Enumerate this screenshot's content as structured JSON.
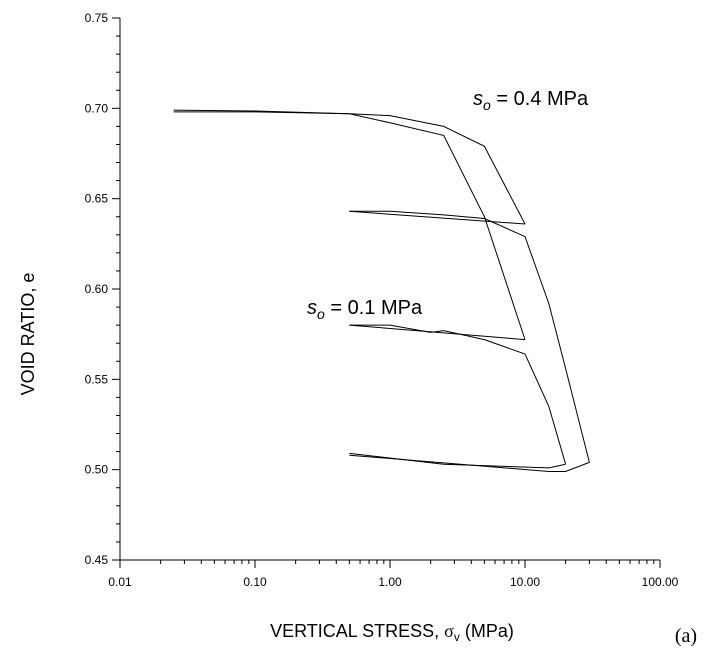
{
  "chart_data": {
    "type": "line",
    "xscale": "log",
    "xlim": [
      0.01,
      100
    ],
    "ylim": [
      0.45,
      0.75
    ],
    "x_tick_labels": [
      "0.01",
      "0.10",
      "1.00",
      "10.00",
      "100.00"
    ],
    "y_tick_labels": [
      "0.45",
      "0.50",
      "0.55",
      "0.60",
      "0.65",
      "0.70",
      "0.75"
    ],
    "xlabel_main": "VERTICAL STRESS, ",
    "xlabel_symbol": "σ",
    "xlabel_sub": "v",
    "xlabel_unit": " (MPa)",
    "ylabel": "VOID RATIO, e",
    "panel_label": "(a)",
    "grid": false,
    "annotations": [
      {
        "var": "s",
        "sub": "o",
        "text": " = 0.4 MPa"
      },
      {
        "var": "s",
        "sub": "o",
        "text": " = 0.1 MPa"
      }
    ],
    "series": [
      {
        "values": [
          [
            0.025,
            0.699
          ],
          [
            0.1,
            0.6985
          ],
          [
            0.5,
            0.697
          ],
          [
            1.0,
            0.696
          ],
          [
            2.5,
            0.69
          ],
          [
            5.0,
            0.679
          ],
          [
            10.0,
            0.636
          ]
        ]
      },
      {
        "values": [
          [
            10.0,
            0.636
          ],
          [
            0.5,
            0.643
          ]
        ]
      },
      {
        "values": [
          [
            0.025,
            0.698
          ],
          [
            0.1,
            0.698
          ],
          [
            0.5,
            0.697
          ],
          [
            1.0,
            0.692
          ],
          [
            2.5,
            0.685
          ],
          [
            5.0,
            0.64
          ],
          [
            10.0,
            0.572
          ]
        ]
      },
      {
        "values": [
          [
            10.0,
            0.572
          ],
          [
            0.5,
            0.58
          ]
        ]
      },
      {
        "values": [
          [
            0.5,
            0.643
          ],
          [
            1.0,
            0.643
          ],
          [
            2.5,
            0.641
          ],
          [
            5.0,
            0.639
          ],
          [
            10.0,
            0.629
          ],
          [
            15.0,
            0.592
          ],
          [
            20.0,
            0.556
          ],
          [
            30.0,
            0.504
          ]
        ]
      },
      {
        "values": [
          [
            30.0,
            0.504
          ],
          [
            20.0,
            0.499
          ],
          [
            15.0,
            0.499
          ],
          [
            0.5,
            0.508
          ]
        ]
      },
      {
        "values": [
          [
            0.5,
            0.58
          ],
          [
            1.0,
            0.58
          ],
          [
            2.0,
            0.576
          ],
          [
            2.5,
            0.577
          ],
          [
            5.0,
            0.572
          ],
          [
            10.0,
            0.564
          ],
          [
            15.0,
            0.535
          ],
          [
            20.0,
            0.503
          ]
        ]
      },
      {
        "values": [
          [
            20.0,
            0.503
          ],
          [
            15.0,
            0.501
          ],
          [
            2.5,
            0.503
          ],
          [
            0.5,
            0.509
          ]
        ]
      }
    ]
  }
}
